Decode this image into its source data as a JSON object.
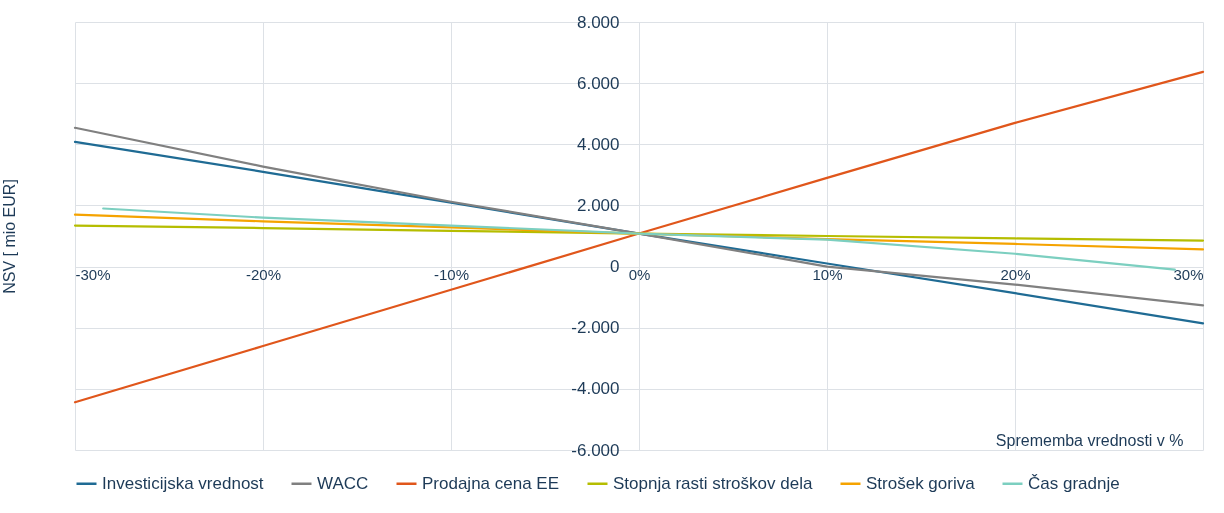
{
  "chart_data": {
    "type": "line",
    "xlabel": "Sprememba vrednosti v %",
    "ylabel": "NSV [ mio EUR]",
    "x": [
      -30,
      -20,
      -10,
      0,
      10,
      20,
      30
    ],
    "series": [
      {
        "name": "Investicijska vrednost",
        "color": "#1f6b94",
        "values": [
          4080,
          3100,
          2090,
          1080,
          100,
          -870,
          -1860
        ]
      },
      {
        "name": "WACC",
        "color": "#808080",
        "values": [
          4540,
          3270,
          2120,
          1080,
          0,
          -590,
          -1270
        ]
      },
      {
        "name": "Prodajna cena EE",
        "color": "#e0561b",
        "values": [
          -4440,
          -2600,
          -760,
          1080,
          2900,
          4700,
          6370
        ]
      },
      {
        "name": "Stopnja rasti stroškov dela",
        "color": "#b5bd00",
        "values": [
          1340,
          1260,
          1170,
          1080,
          1000,
          920,
          850
        ]
      },
      {
        "name": "Strošek goriva",
        "color": "#f5a300",
        "values": [
          1700,
          1480,
          1280,
          1080,
          900,
          740,
          560
        ]
      },
      {
        "name": "Čas gradnje",
        "color": "#7ccfc0",
        "x": [
          -28.5,
          -20,
          -10,
          0,
          10,
          20,
          28.5
        ],
        "values": [
          1900,
          1600,
          1340,
          1080,
          880,
          420,
          -100
        ]
      }
    ],
    "xlim": [
      -30,
      30
    ],
    "ylim": [
      -6000,
      8000
    ],
    "xticks": [
      {
        "value": -30,
        "label": "-30%"
      },
      {
        "value": -20,
        "label": "-20%"
      },
      {
        "value": -10,
        "label": "-10%"
      },
      {
        "value": 0,
        "label": "0%"
      },
      {
        "value": 10,
        "label": "10%"
      },
      {
        "value": 20,
        "label": "20%"
      },
      {
        "value": 30,
        "label": "30%"
      }
    ],
    "yticks": [
      {
        "value": -6000,
        "label": "-6.000"
      },
      {
        "value": -4000,
        "label": "-4.000"
      },
      {
        "value": -2000,
        "label": "-2.000"
      },
      {
        "value": 0,
        "label": "0"
      },
      {
        "value": 2000,
        "label": "2.000"
      },
      {
        "value": 4000,
        "label": "4.000"
      },
      {
        "value": 6000,
        "label": "6.000"
      },
      {
        "value": 8000,
        "label": "8.000"
      }
    ],
    "grid": true,
    "legend": "bottom",
    "marker": "none",
    "line_style": "solid"
  }
}
